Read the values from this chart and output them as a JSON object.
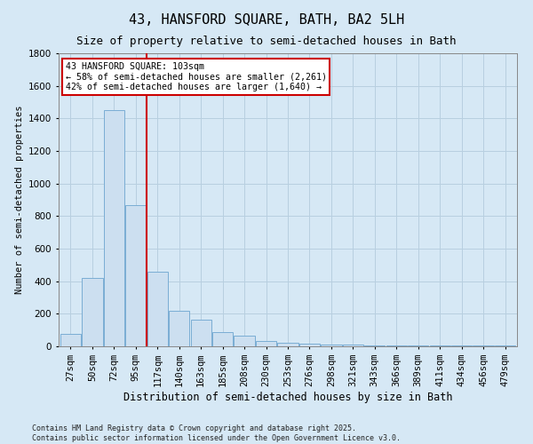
{
  "title": "43, HANSFORD SQUARE, BATH, BA2 5LH",
  "subtitle": "Size of property relative to semi-detached houses in Bath",
  "xlabel": "Distribution of semi-detached houses by size in Bath",
  "ylabel": "Number of semi-detached properties",
  "categories": [
    "27sqm",
    "50sqm",
    "72sqm",
    "95sqm",
    "117sqm",
    "140sqm",
    "163sqm",
    "185sqm",
    "208sqm",
    "230sqm",
    "253sqm",
    "276sqm",
    "298sqm",
    "321sqm",
    "343sqm",
    "366sqm",
    "389sqm",
    "411sqm",
    "434sqm",
    "456sqm",
    "479sqm"
  ],
  "values": [
    75,
    420,
    1450,
    870,
    460,
    220,
    165,
    90,
    65,
    35,
    22,
    15,
    12,
    10,
    8,
    5,
    8,
    5,
    5,
    3,
    3
  ],
  "bar_color": "#ccdff0",
  "bar_edge_color": "#7aadd4",
  "grid_color": "#b8cfe0",
  "background_color": "#d6e8f5",
  "red_line_x": 3.48,
  "annotation_title": "43 HANSFORD SQUARE: 103sqm",
  "annotation_line1": "← 58% of semi-detached houses are smaller (2,261)",
  "annotation_line2": "42% of semi-detached houses are larger (1,640) →",
  "annotation_box_facecolor": "#ffffff",
  "annotation_box_edgecolor": "#cc0000",
  "red_line_color": "#cc0000",
  "ylim": [
    0,
    1800
  ],
  "yticks": [
    0,
    200,
    400,
    600,
    800,
    1000,
    1200,
    1400,
    1600,
    1800
  ],
  "title_fontsize": 11,
  "subtitle_fontsize": 9,
  "footer_line1": "Contains HM Land Registry data © Crown copyright and database right 2025.",
  "footer_line2": "Contains public sector information licensed under the Open Government Licence v3.0."
}
